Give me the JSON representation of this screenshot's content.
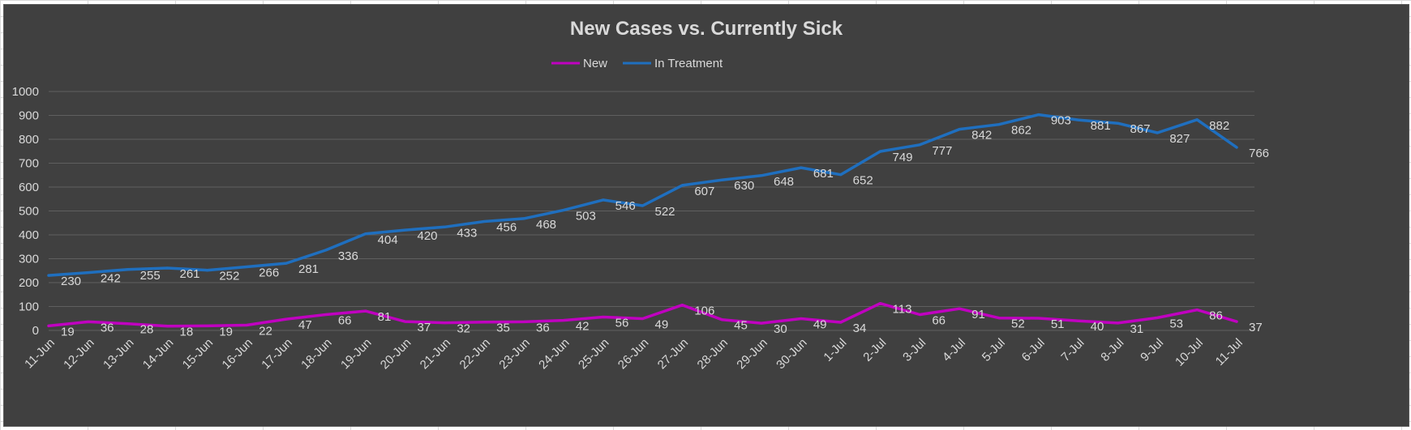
{
  "chart_data": {
    "type": "line",
    "title": "New Cases vs. Currently Sick",
    "categories": [
      "11-Jun",
      "12-Jun",
      "13-Jun",
      "14-Jun",
      "15-Jun",
      "16-Jun",
      "17-Jun",
      "18-Jun",
      "19-Jun",
      "20-Jun",
      "21-Jun",
      "22-Jun",
      "23-Jun",
      "24-Jun",
      "25-Jun",
      "26-Jun",
      "27-Jun",
      "28-Jun",
      "29-Jun",
      "30-Jun",
      "1-Jul",
      "2-Jul",
      "3-Jul",
      "4-Jul",
      "5-Jul",
      "6-Jul",
      "7-Jul",
      "8-Jul",
      "9-Jul",
      "10-Jul",
      "11-Jul"
    ],
    "series": [
      {
        "name": "New",
        "color": "#c000c0",
        "values": [
          19,
          36,
          28,
          18,
          19,
          22,
          47,
          66,
          81,
          37,
          32,
          35,
          36,
          42,
          56,
          49,
          106,
          45,
          30,
          49,
          34,
          113,
          66,
          91,
          52,
          51,
          40,
          31,
          53,
          86,
          37
        ]
      },
      {
        "name": "In Treatment",
        "color": "#1f6fbf",
        "values": [
          230,
          242,
          255,
          261,
          252,
          266,
          281,
          336,
          404,
          420,
          433,
          456,
          468,
          503,
          546,
          522,
          607,
          630,
          648,
          681,
          652,
          749,
          777,
          842,
          862,
          903,
          881,
          867,
          827,
          882,
          766
        ]
      }
    ],
    "ylim": [
      0,
      1000
    ],
    "yticks": [
      0,
      100,
      200,
      300,
      400,
      500,
      600,
      700,
      800,
      900,
      1000
    ],
    "legend_position": "top",
    "grid": true,
    "background": "#404040"
  }
}
